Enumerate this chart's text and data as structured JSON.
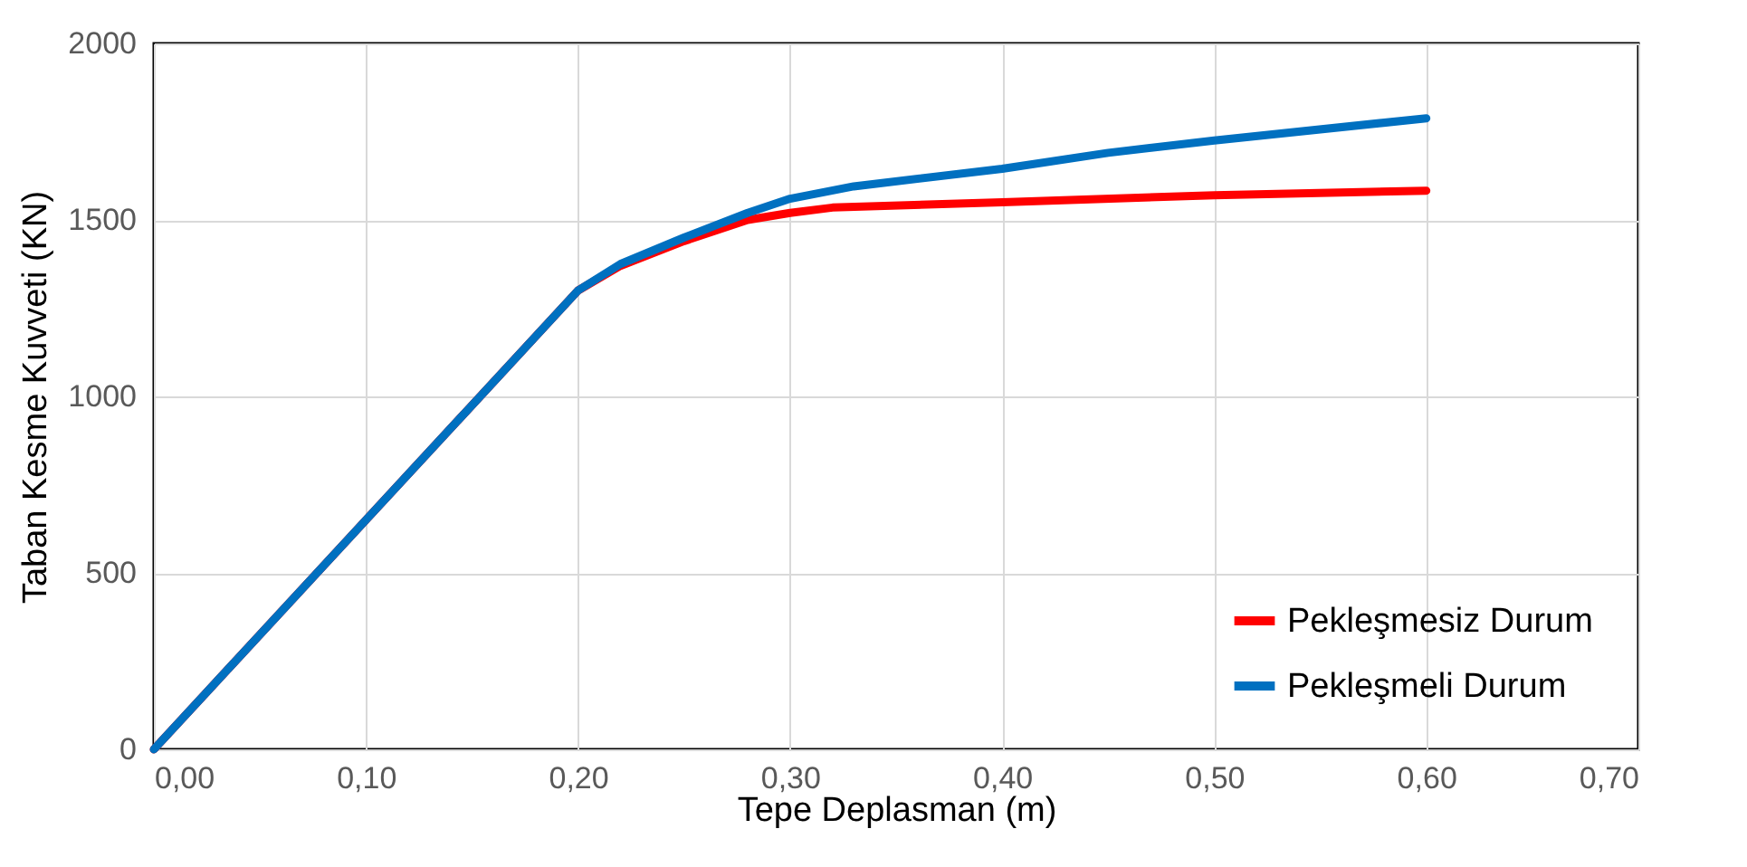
{
  "chart_data": {
    "type": "line",
    "xlabel": "Tepe Deplasman (m)",
    "ylabel": "Taban Kesme Kuvveti (KN)",
    "xlim": [
      0,
      0.7
    ],
    "xticks": [
      {
        "value": 0,
        "label": "0,00"
      },
      {
        "value": 0.1,
        "label": "0,10"
      },
      {
        "value": 0.2,
        "label": "0,20"
      },
      {
        "value": 0.3,
        "label": "0,30"
      },
      {
        "value": 0.4,
        "label": "0,40"
      },
      {
        "value": 0.5,
        "label": "0,50"
      },
      {
        "value": 0.6,
        "label": "0,60"
      },
      {
        "value": 0.7,
        "label": "0,70"
      }
    ],
    "ylim": [
      0,
      2000
    ],
    "yticks": [
      0,
      500,
      1000,
      1500,
      2000
    ],
    "grid": true,
    "legend": "bottom right",
    "marker": "none",
    "line_style": "solid",
    "series": [
      {
        "name": "Pekleşmesiz Durum",
        "color": "#ff0000",
        "x": [
          0,
          0.1,
          0.2,
          0.22,
          0.25,
          0.28,
          0.3,
          0.32,
          0.4,
          0.5,
          0.6
        ],
        "values": [
          0,
          650,
          1300,
          1370,
          1440,
          1500,
          1520,
          1535,
          1550,
          1570,
          1583
        ]
      },
      {
        "name": "Pekleşmeli Durum",
        "color": "#0070c0",
        "x": [
          0,
          0.1,
          0.2,
          0.22,
          0.25,
          0.28,
          0.3,
          0.33,
          0.4,
          0.45,
          0.5,
          0.6
        ],
        "values": [
          0,
          650,
          1300,
          1375,
          1450,
          1520,
          1560,
          1595,
          1645,
          1690,
          1725,
          1788
        ]
      }
    ]
  }
}
